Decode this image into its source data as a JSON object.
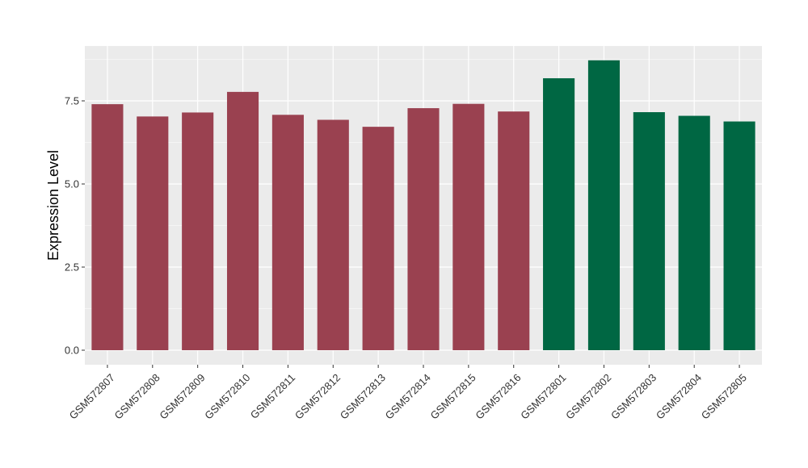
{
  "chart_data": {
    "type": "bar",
    "title": "",
    "xlabel": "",
    "ylabel": "Expression Level",
    "ylim": [
      0,
      9.0
    ],
    "yticks": [
      0.0,
      2.5,
      5.0,
      7.5
    ],
    "ytick_labels": [
      "0.0",
      "2.5",
      "5.0",
      "7.5"
    ],
    "grid": true,
    "categories": [
      "GSM572807",
      "GSM572808",
      "GSM572809",
      "GSM572810",
      "GSM572811",
      "GSM572812",
      "GSM572813",
      "GSM572814",
      "GSM572815",
      "GSM572816",
      "GSM572801",
      "GSM572802",
      "GSM572803",
      "GSM572804",
      "GSM572805"
    ],
    "values": [
      7.4,
      7.03,
      7.15,
      7.77,
      7.08,
      6.93,
      6.72,
      7.28,
      7.41,
      7.18,
      8.18,
      8.72,
      7.16,
      7.05,
      6.88
    ],
    "colors": [
      "#9a4150",
      "#9a4150",
      "#9a4150",
      "#9a4150",
      "#9a4150",
      "#9a4150",
      "#9a4150",
      "#9a4150",
      "#9a4150",
      "#9a4150",
      "#006743",
      "#006743",
      "#006743",
      "#006743",
      "#006743"
    ],
    "panel_background": "#ebebeb",
    "grid_color": "#ffffff"
  }
}
